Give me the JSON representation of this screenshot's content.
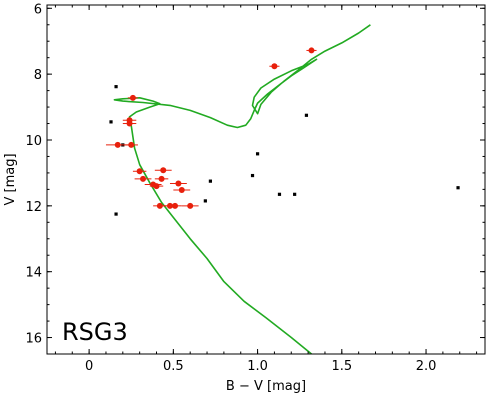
{
  "chart_data": {
    "type": "scatter",
    "title": "",
    "panel_label": "RSG3",
    "xlabel": "B − V [mag]",
    "ylabel": "V [mag]",
    "xlim": [
      -0.25,
      2.35
    ],
    "ylim": [
      16.5,
      5.9
    ],
    "y_inverted": true,
    "grid": false,
    "xticks": [
      0,
      0.5,
      1,
      1.5,
      2
    ],
    "xtick_labels": [
      "0",
      "0.5",
      "1.0",
      "1.5",
      "2.0"
    ],
    "yticks": [
      6,
      8,
      10,
      12,
      14,
      16
    ],
    "ytick_labels": [
      "6",
      "8",
      "10",
      "12",
      "14",
      "16"
    ],
    "colors": {
      "members": "#e8200c",
      "isochrone": "#22aa22",
      "field": "#000000"
    },
    "series": [
      {
        "marker": "red-circle-with-error-bars",
        "points": [
          {
            "x": 1.32,
            "y": 7.28,
            "xerr": 0.03
          },
          {
            "x": 1.1,
            "y": 7.76,
            "xerr": 0.03
          },
          {
            "x": 0.26,
            "y": 8.72,
            "xerr": 0.03
          },
          {
            "x": 0.24,
            "y": 9.4,
            "xerr": 0.04
          },
          {
            "x": 0.24,
            "y": 9.5,
            "xerr": 0.04
          },
          {
            "x": 0.17,
            "y": 10.15,
            "xerr": 0.07
          },
          {
            "x": 0.25,
            "y": 10.15,
            "xerr": 0.04
          },
          {
            "x": 0.3,
            "y": 10.95,
            "xerr": 0.04
          },
          {
            "x": 0.44,
            "y": 10.92,
            "xerr": 0.05
          },
          {
            "x": 0.32,
            "y": 11.18,
            "xerr": 0.05
          },
          {
            "x": 0.43,
            "y": 11.18,
            "xerr": 0.04
          },
          {
            "x": 0.38,
            "y": 11.35,
            "xerr": 0.05
          },
          {
            "x": 0.4,
            "y": 11.4,
            "xerr": 0.04
          },
          {
            "x": 0.53,
            "y": 11.32,
            "xerr": 0.05
          },
          {
            "x": 0.55,
            "y": 11.52,
            "xerr": 0.05
          },
          {
            "x": 0.42,
            "y": 12.0,
            "xerr": 0.04
          },
          {
            "x": 0.48,
            "y": 12.0,
            "xerr": 0.04
          },
          {
            "x": 0.51,
            "y": 12.0,
            "xerr": 0.04
          },
          {
            "x": 0.6,
            "y": 12.0,
            "xerr": 0.05
          }
        ]
      },
      {
        "marker": "black-square",
        "points": [
          {
            "x": 0.16,
            "y": 8.38
          },
          {
            "x": 0.13,
            "y": 9.45
          },
          {
            "x": 0.2,
            "y": 10.15
          },
          {
            "x": 0.16,
            "y": 12.25
          },
          {
            "x": 0.72,
            "y": 11.25
          },
          {
            "x": 0.69,
            "y": 11.85
          },
          {
            "x": 0.97,
            "y": 11.08
          },
          {
            "x": 1.0,
            "y": 10.42
          },
          {
            "x": 1.13,
            "y": 11.65
          },
          {
            "x": 1.22,
            "y": 11.65
          },
          {
            "x": 1.29,
            "y": 9.25
          },
          {
            "x": 2.19,
            "y": 11.45
          }
        ]
      },
      {
        "marker": "green-line",
        "isochrone": [
          [
            1.32,
            16.5
          ],
          [
            1.2,
            16.0
          ],
          [
            1.05,
            15.4
          ],
          [
            0.92,
            14.9
          ],
          [
            0.8,
            14.3
          ],
          [
            0.7,
            13.6
          ],
          [
            0.6,
            13.0
          ],
          [
            0.5,
            12.35
          ],
          [
            0.43,
            11.9
          ],
          [
            0.36,
            11.3
          ],
          [
            0.3,
            10.75
          ],
          [
            0.27,
            10.25
          ],
          [
            0.26,
            9.9
          ],
          [
            0.25,
            9.55
          ],
          [
            0.24,
            9.3
          ],
          [
            0.28,
            9.15
          ],
          [
            0.36,
            9.0
          ],
          [
            0.42,
            8.9
          ],
          [
            0.38,
            8.82
          ],
          [
            0.3,
            8.72
          ],
          [
            0.2,
            8.75
          ],
          [
            0.15,
            8.78
          ],
          [
            0.2,
            8.82
          ],
          [
            0.32,
            8.86
          ],
          [
            0.48,
            8.95
          ],
          [
            0.6,
            9.1
          ],
          [
            0.72,
            9.32
          ],
          [
            0.82,
            9.55
          ],
          [
            0.88,
            9.62
          ],
          [
            0.93,
            9.55
          ],
          [
            0.96,
            9.35
          ],
          [
            0.98,
            9.1
          ],
          [
            1.0,
            8.88
          ],
          [
            1.06,
            8.6
          ],
          [
            1.13,
            8.32
          ],
          [
            1.2,
            8.05
          ],
          [
            1.27,
            7.82
          ],
          [
            1.35,
            7.55
          ],
          [
            1.3,
            7.7
          ],
          [
            1.2,
            7.9
          ],
          [
            1.1,
            8.15
          ],
          [
            1.02,
            8.42
          ],
          [
            0.98,
            8.7
          ],
          [
            0.97,
            8.95
          ],
          [
            1.0,
            9.2
          ],
          [
            1.02,
            8.92
          ],
          [
            1.08,
            8.55
          ],
          [
            1.16,
            8.2
          ],
          [
            1.24,
            7.88
          ],
          [
            1.32,
            7.55
          ],
          [
            1.4,
            7.3
          ],
          [
            1.5,
            7.05
          ],
          [
            1.6,
            6.75
          ],
          [
            1.67,
            6.5
          ]
        ]
      }
    ]
  }
}
